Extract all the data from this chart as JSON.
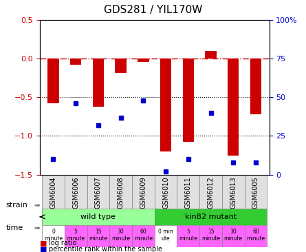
{
  "title": "GDS281 / YIL170W",
  "samples": [
    "GSM6004",
    "GSM6006",
    "GSM6007",
    "GSM6008",
    "GSM6009",
    "GSM6010",
    "GSM6011",
    "GSM6012",
    "GSM6013",
    "GSM6005"
  ],
  "log_ratio": [
    -0.58,
    -0.08,
    -0.62,
    -0.18,
    -0.04,
    -1.2,
    -1.08,
    0.1,
    -1.25,
    -0.72
  ],
  "percentile": [
    10,
    46,
    32,
    37,
    48,
    2,
    10,
    40,
    8,
    8
  ],
  "bar_color": "#CC0000",
  "dot_color": "#0000CC",
  "ylim_left": [
    -1.5,
    0.5
  ],
  "ylim_right": [
    0,
    100
  ],
  "right_ticks": [
    0,
    25,
    50,
    75,
    100
  ],
  "right_tick_labels": [
    "0",
    "25",
    "50",
    "75",
    "100%"
  ],
  "left_ticks": [
    -1.5,
    -1.0,
    -0.5,
    0.0,
    0.5
  ],
  "hline_y": 0,
  "dotted_lines": [
    -0.5,
    -1.0
  ],
  "strain_wt_label": "wild type",
  "strain_mut_label": "kin82 mutant",
  "strain_wt_color": "#99FF99",
  "strain_mut_color": "#33CC33",
  "time_labels_wt": [
    "0\nminute",
    "5\nminute",
    "15\nminute",
    "30\nminute",
    "60\nminute"
  ],
  "time_labels_mut": [
    "0 min\nute",
    "5\nminute",
    "15\nminute",
    "30\nminute",
    "60\nminute"
  ],
  "time_color_0": "#FFFFFF",
  "time_color_other": "#FF66FF",
  "legend_bar_label": "log ratio",
  "legend_dot_label": "percentile rank within the sample",
  "axis_label_color_left": "#CC0000",
  "axis_label_color_right": "#0000CC"
}
